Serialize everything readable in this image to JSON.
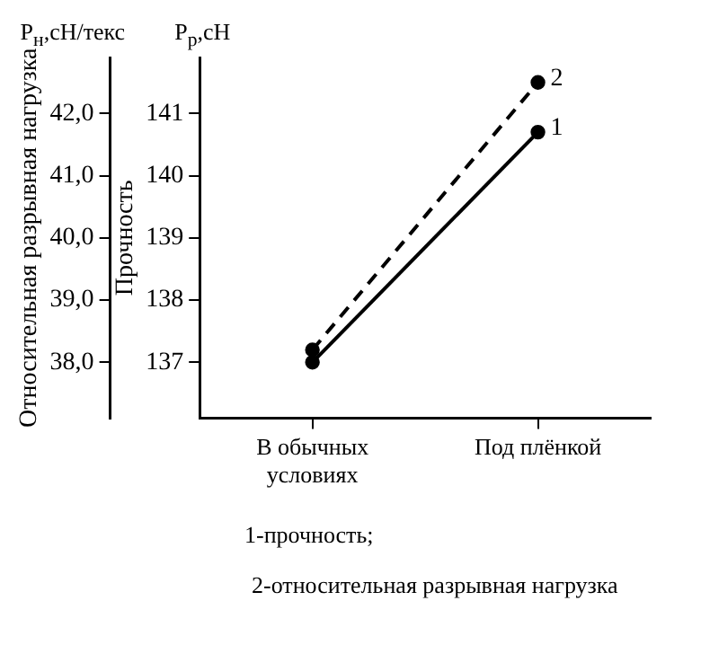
{
  "chart_data": {
    "type": "line",
    "categories": [
      "В обычных условиях",
      "Под плёнкой"
    ],
    "series": [
      {
        "name": "1",
        "color": "#000000",
        "axis": "y2",
        "line_style": "solid",
        "values": [
          137.0,
          140.7
        ]
      },
      {
        "name": "2",
        "color": "#000000",
        "axis": "y",
        "line_style": "dashed",
        "values": [
          38.2,
          42.5
        ]
      }
    ],
    "ylabel": "Относительная разрывная нагрузка",
    "y2label": "Прочность",
    "ylim": [
      37.1,
      42.9
    ],
    "yticks": [
      {
        "value": 38,
        "label": "38,0"
      },
      {
        "value": 39,
        "label": "39,0"
      },
      {
        "value": 40,
        "label": "40,0"
      },
      {
        "value": 41,
        "label": "41,0"
      },
      {
        "value": 42,
        "label": "42,0"
      }
    ],
    "y2lim": [
      136.1,
      141.9
    ],
    "y2ticks": [
      137,
      138,
      139,
      140,
      141
    ],
    "annotations": [
      "P$_{н}$,сН/текс",
      "P$_{р}$,сН",
      "1-прочность;",
      "2-относительная разрывная нагрузка"
    ],
    "marker": "circle",
    "grid": false,
    "legend": false
  }
}
